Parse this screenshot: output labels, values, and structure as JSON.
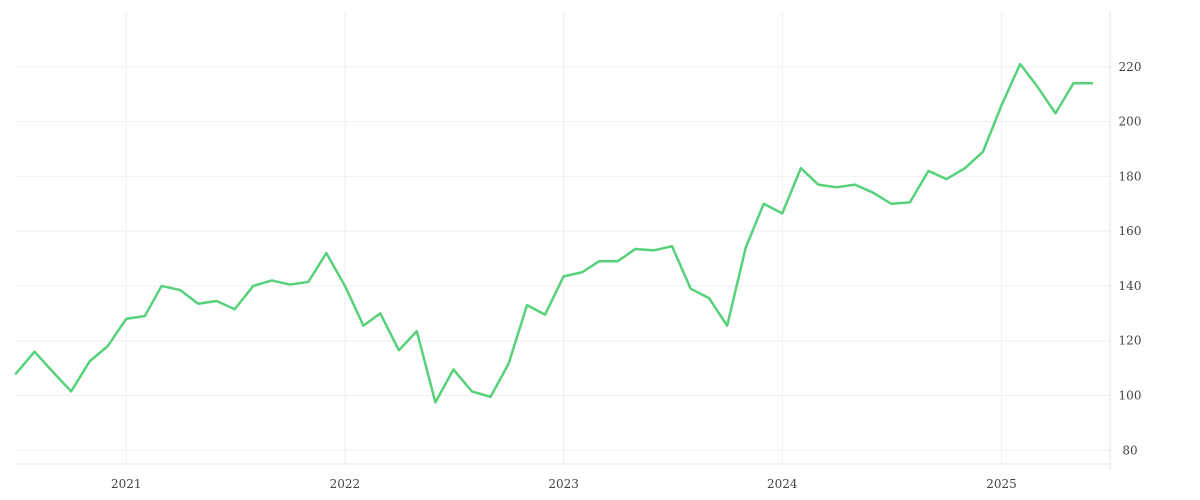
{
  "chart_data": {
    "type": "line",
    "xlabel": "",
    "ylabel": "",
    "ylim": [
      75,
      240
    ],
    "grid": true,
    "legend": "none",
    "y_axis_side": "right",
    "y_ticks": [
      "80",
      "100",
      "120",
      "140",
      "160",
      "180",
      "200",
      "220"
    ],
    "x_ticks": [
      {
        "date": "2021-01-01",
        "label": "2021"
      },
      {
        "date": "2022-01-01",
        "label": "2022"
      },
      {
        "date": "2023-01-01",
        "label": "2023"
      },
      {
        "date": "2024-01-01",
        "label": "2024"
      },
      {
        "date": "2025-01-01",
        "label": "2025"
      }
    ],
    "xlim": [
      "2020-07-01",
      "2025-07-01"
    ],
    "series": [
      {
        "name": "",
        "color": "#57d17a",
        "points": [
          [
            "2020-07-01",
            108
          ],
          [
            "2020-08-01",
            116
          ],
          [
            "2020-09-01",
            108.5
          ],
          [
            "2020-10-01",
            101.5
          ],
          [
            "2020-11-01",
            112.5
          ],
          [
            "2020-12-01",
            118
          ],
          [
            "2021-01-01",
            128
          ],
          [
            "2021-02-01",
            129
          ],
          [
            "2021-03-01",
            140
          ],
          [
            "2021-04-01",
            138.5
          ],
          [
            "2021-05-01",
            133.5
          ],
          [
            "2021-06-01",
            134.5
          ],
          [
            "2021-07-01",
            131.5
          ],
          [
            "2021-08-01",
            140
          ],
          [
            "2021-09-01",
            142
          ],
          [
            "2021-10-01",
            140.5
          ],
          [
            "2021-11-01",
            141.5
          ],
          [
            "2021-12-01",
            152
          ],
          [
            "2022-01-01",
            140
          ],
          [
            "2022-02-01",
            125.5
          ],
          [
            "2022-03-01",
            130
          ],
          [
            "2022-04-01",
            116.5
          ],
          [
            "2022-05-01",
            123.5
          ],
          [
            "2022-06-01",
            97.5
          ],
          [
            "2022-07-01",
            109.5
          ],
          [
            "2022-08-01",
            101.5
          ],
          [
            "2022-09-01",
            99.5
          ],
          [
            "2022-10-01",
            111.5
          ],
          [
            "2022-11-01",
            133
          ],
          [
            "2022-12-01",
            129.5
          ],
          [
            "2023-01-01",
            143.5
          ],
          [
            "2023-02-01",
            145
          ],
          [
            "2023-03-01",
            149
          ],
          [
            "2023-04-01",
            149
          ],
          [
            "2023-05-01",
            153.5
          ],
          [
            "2023-06-01",
            153
          ],
          [
            "2023-07-01",
            154.5
          ],
          [
            "2023-08-01",
            139
          ],
          [
            "2023-09-01",
            135.5
          ],
          [
            "2023-10-01",
            125.5
          ],
          [
            "2023-11-01",
            154
          ],
          [
            "2023-12-01",
            170
          ],
          [
            "2024-01-01",
            166.5
          ],
          [
            "2024-02-01",
            183
          ],
          [
            "2024-03-01",
            177
          ],
          [
            "2024-04-01",
            176
          ],
          [
            "2024-05-01",
            177
          ],
          [
            "2024-06-01",
            174
          ],
          [
            "2024-07-01",
            170
          ],
          [
            "2024-08-01",
            170.5
          ],
          [
            "2024-09-01",
            182
          ],
          [
            "2024-10-01",
            179
          ],
          [
            "2024-11-01",
            183
          ],
          [
            "2024-12-01",
            189
          ],
          [
            "2025-01-01",
            206
          ],
          [
            "2025-02-01",
            221
          ],
          [
            "2025-03-01",
            213
          ],
          [
            "2025-04-01",
            203
          ],
          [
            "2025-05-01",
            214
          ],
          [
            "2025-06-01",
            214
          ]
        ]
      }
    ]
  }
}
